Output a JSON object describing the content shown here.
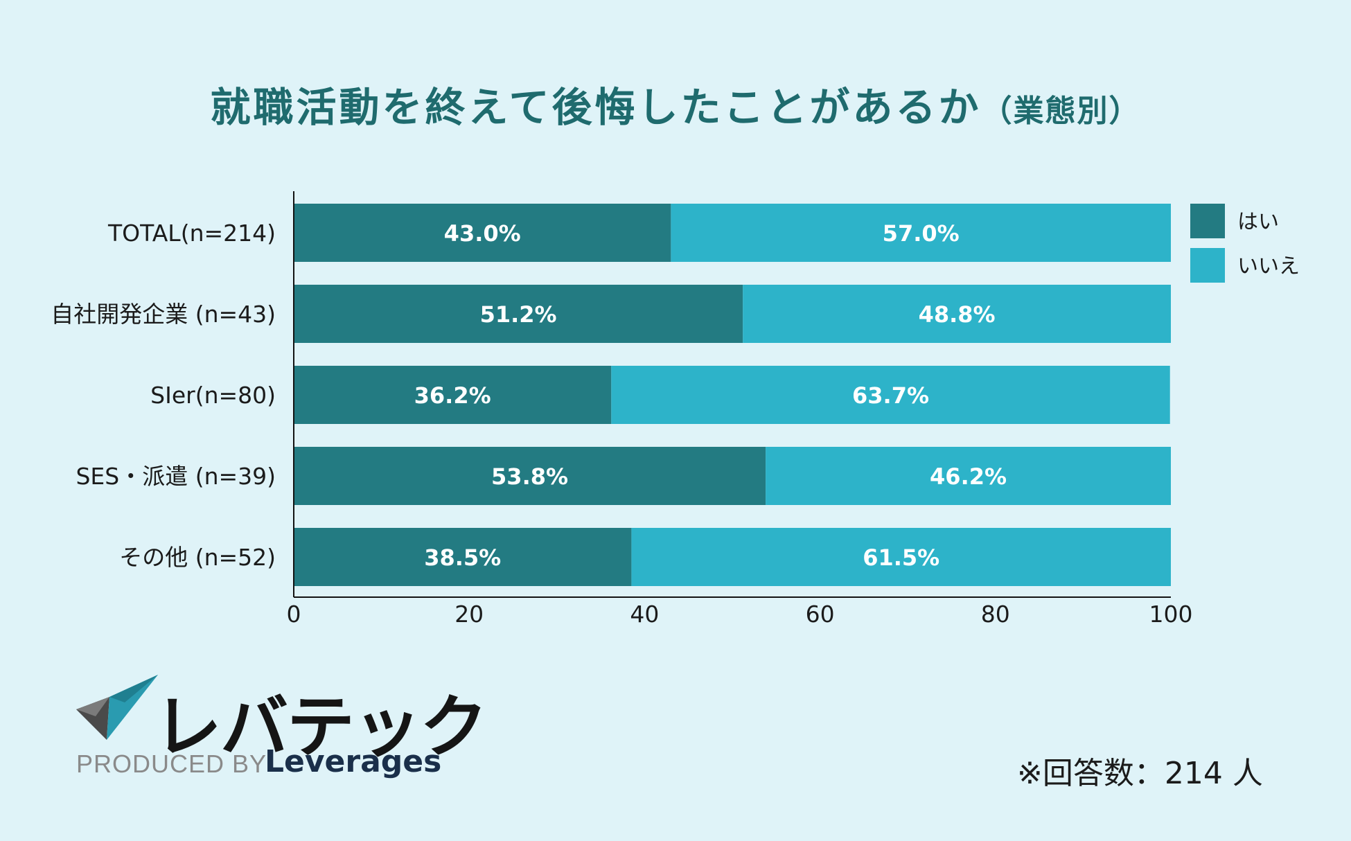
{
  "chart_data": {
    "type": "bar",
    "orientation": "horizontal",
    "stacked": true,
    "title": "就職活動を終えて後悔したことがあるか",
    "title_suffix": "（業態別）",
    "categories": [
      "TOTAL(n=214)",
      "自社開発企業 (n=43)",
      "SIer(n=80)",
      "SES・派遣 (n=39)",
      "その他 (n=52)"
    ],
    "series": [
      {
        "name": "はい",
        "color": "#237b82",
        "values": [
          43.0,
          51.2,
          36.2,
          53.8,
          38.5
        ],
        "labels": [
          "43.0%",
          "51.2%",
          "36.2%",
          "53.8%",
          "38.5%"
        ]
      },
      {
        "name": "いいえ",
        "color": "#2db3c9",
        "values": [
          57.0,
          48.8,
          63.7,
          46.2,
          61.5
        ],
        "labels": [
          "57.0%",
          "48.8%",
          "63.7%",
          "46.2%",
          "61.5%"
        ]
      }
    ],
    "xlim": [
      0,
      100
    ],
    "xticks": [
      0,
      20,
      40,
      60,
      80,
      100
    ],
    "grid": false,
    "legend_position": "right"
  },
  "logo": {
    "text": "レバテック",
    "produced_by": "PRODUCED BY",
    "brand": "Leverages"
  },
  "note": "※回答数：214 人"
}
